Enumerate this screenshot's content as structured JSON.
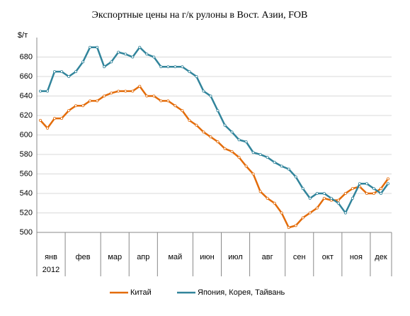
{
  "chart_data": {
    "type": "line",
    "title": "Экспортные цены на г/к рулоны в Вост. Азии,   FOB",
    "y_label": "$/т",
    "year": "2012",
    "categories": [
      "янв",
      null,
      null,
      null,
      "фев",
      null,
      null,
      null,
      null,
      "мар",
      null,
      null,
      null,
      "апр",
      null,
      null,
      null,
      "май",
      null,
      null,
      null,
      null,
      "июн",
      null,
      null,
      null,
      "июл",
      null,
      null,
      null,
      "авг",
      null,
      null,
      null,
      null,
      "сен",
      null,
      null,
      null,
      "окт",
      null,
      null,
      null,
      "ноя",
      null,
      null,
      null,
      "дек",
      null,
      null
    ],
    "series": [
      {
        "name": "Китай",
        "color": "#e36c0a",
        "values": [
          615,
          607,
          617,
          617,
          625,
          630,
          630,
          635,
          635,
          640,
          643,
          645,
          645,
          645,
          650,
          640,
          640,
          635,
          635,
          630,
          625,
          615,
          610,
          603,
          598,
          593,
          586,
          583,
          577,
          568,
          560,
          542,
          535,
          530,
          520,
          505,
          507,
          515,
          520,
          525,
          535,
          533,
          533,
          540,
          545,
          547,
          540,
          540,
          545,
          555
        ]
      },
      {
        "name": "Япония, Корея, Тайвань",
        "color": "#31849b",
        "values": [
          645,
          645,
          665,
          665,
          660,
          665,
          675,
          690,
          690,
          670,
          675,
          685,
          683,
          680,
          690,
          683,
          680,
          670,
          670,
          670,
          670,
          665,
          660,
          645,
          640,
          625,
          610,
          603,
          595,
          593,
          582,
          580,
          577,
          572,
          568,
          565,
          557,
          545,
          535,
          540,
          540,
          535,
          530,
          520,
          535,
          550,
          550,
          545,
          540,
          550
        ]
      }
    ],
    "ylim": [
      500,
      700
    ],
    "yticks": [
      500,
      520,
      540,
      560,
      580,
      600,
      620,
      640,
      660,
      680
    ],
    "grid": true
  }
}
